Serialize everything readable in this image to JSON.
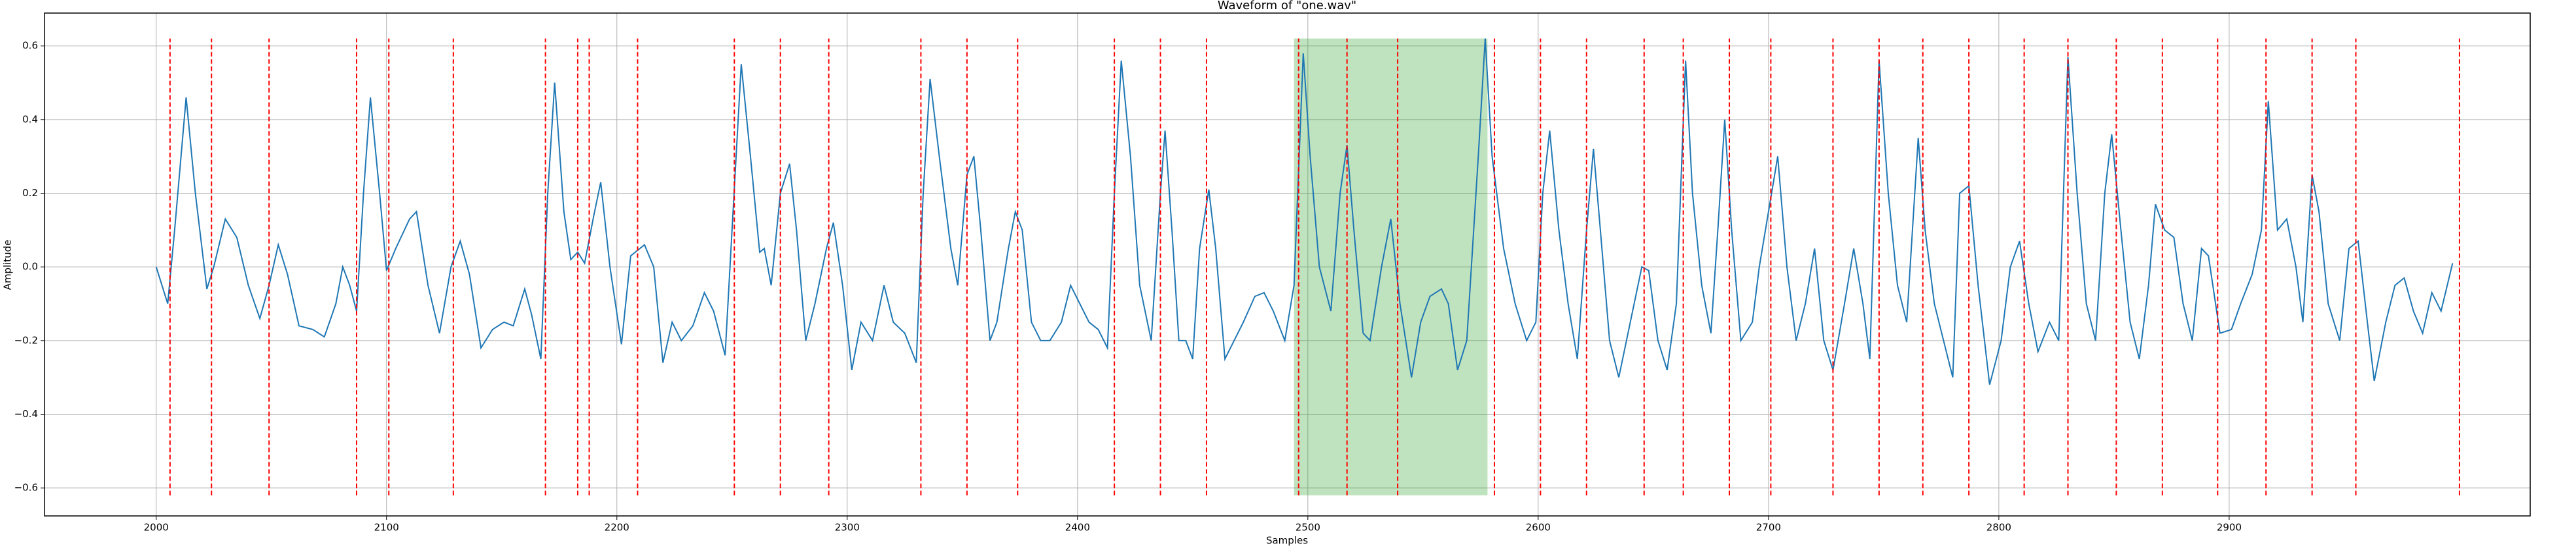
{
  "chart_data": {
    "type": "line",
    "title": "Waveform of \"one.wav\"",
    "x_label": "Samples",
    "y_label": "Amplitude",
    "x": [
      2000,
      2005,
      2008,
      2013,
      2017,
      2022,
      2025,
      2030,
      2035,
      2040,
      2045,
      2049,
      2053,
      2057,
      2062,
      2068,
      2073,
      2078,
      2081,
      2084,
      2087,
      2090,
      2093,
      2097,
      2100,
      2104,
      2110,
      2113,
      2118,
      2123,
      2128,
      2132,
      2136,
      2141,
      2146,
      2151,
      2155,
      2160,
      2163,
      2167,
      2170,
      2173,
      2177,
      2180,
      2183,
      2186,
      2190,
      2193,
      2197,
      2202,
      2206,
      2212,
      2216,
      2220,
      2224,
      2228,
      2233,
      2238,
      2242,
      2247,
      2250,
      2254,
      2258,
      2262,
      2264,
      2267,
      2271,
      2275,
      2278,
      2282,
      2286,
      2291,
      2294,
      2298,
      2302,
      2306,
      2311,
      2316,
      2320,
      2325,
      2330,
      2333,
      2336,
      2340,
      2345,
      2348,
      2352,
      2355,
      2358,
      2362,
      2365,
      2370,
      2373,
      2376,
      2380,
      2384,
      2388,
      2393,
      2397,
      2401,
      2405,
      2409,
      2413,
      2416,
      2419,
      2423,
      2427,
      2432,
      2436,
      2438,
      2441,
      2444,
      2447,
      2450,
      2453,
      2457,
      2460,
      2464,
      2468,
      2472,
      2477,
      2481,
      2485,
      2490,
      2494,
      2498,
      2501,
      2505,
      2510,
      2514,
      2517,
      2520,
      2524,
      2527,
      2532,
      2536,
      2540,
      2545,
      2549,
      2553,
      2558,
      2561,
      2565,
      2569,
      2574,
      2577,
      2580,
      2585,
      2590,
      2595,
      2599,
      2602,
      2605,
      2609,
      2613,
      2617,
      2621,
      2624,
      2627,
      2631,
      2635,
      2640,
      2645,
      2648,
      2652,
      2656,
      2660,
      2664,
      2667,
      2671,
      2675,
      2678,
      2681,
      2684,
      2688,
      2693,
      2696,
      2700,
      2704,
      2708,
      2712,
      2716,
      2720,
      2724,
      2728,
      2733,
      2737,
      2741,
      2744,
      2748,
      2752,
      2756,
      2760,
      2765,
      2768,
      2772,
      2776,
      2780,
      2783,
      2787,
      2791,
      2796,
      2801,
      2805,
      2809,
      2813,
      2817,
      2822,
      2826,
      2830,
      2834,
      2838,
      2842,
      2846,
      2849,
      2853,
      2857,
      2861,
      2865,
      2868,
      2872,
      2876,
      2880,
      2884,
      2888,
      2891,
      2896,
      2901,
      2905,
      2910,
      2914,
      2917,
      2921,
      2925,
      2929,
      2932,
      2936,
      2939,
      2943,
      2948,
      2952,
      2956,
      2960,
      2963,
      2968,
      2972,
      2976,
      2980,
      2984,
      2988,
      2992,
      2997
    ],
    "series": [
      {
        "color": "#1f77b4",
        "values": [
          0,
          -0.1,
          0.1,
          0.46,
          0.2,
          -0.06,
          0,
          0.13,
          0.08,
          -0.05,
          -0.14,
          -0.05,
          0.06,
          -0.02,
          -0.16,
          -0.17,
          -0.19,
          -0.1,
          0,
          -0.05,
          -0.12,
          0.2,
          0.46,
          0.2,
          -0.01,
          0.05,
          0.13,
          0.15,
          -0.05,
          -0.18,
          0,
          0.07,
          -0.02,
          -0.22,
          -0.17,
          -0.15,
          -0.16,
          -0.06,
          -0.13,
          -0.25,
          0.2,
          0.5,
          0.15,
          0.02,
          0.04,
          0.01,
          0.14,
          0.23,
          0,
          -0.21,
          0.03,
          0.06,
          0,
          -0.26,
          -0.15,
          -0.2,
          -0.16,
          -0.07,
          -0.12,
          -0.24,
          0.1,
          0.55,
          0.3,
          0.04,
          0.05,
          -0.05,
          0.2,
          0.28,
          0.1,
          -0.2,
          -0.1,
          0.05,
          0.12,
          -0.05,
          -0.28,
          -0.15,
          -0.2,
          -0.05,
          -0.15,
          -0.18,
          -0.26,
          0.2,
          0.51,
          0.3,
          0.05,
          -0.05,
          0.25,
          0.3,
          0.1,
          -0.2,
          -0.15,
          0.05,
          0.15,
          0.1,
          -0.15,
          -0.2,
          -0.2,
          -0.15,
          -0.05,
          -0.1,
          -0.15,
          -0.17,
          -0.22,
          0.2,
          0.56,
          0.3,
          -0.05,
          -0.2,
          0.2,
          0.37,
          0.1,
          -0.2,
          -0.2,
          -0.25,
          0.05,
          0.21,
          0.05,
          -0.25,
          -0.2,
          -0.15,
          -0.08,
          -0.07,
          -0.12,
          -0.2,
          -0.05,
          0.58,
          0.3,
          0,
          -0.12,
          0.2,
          0.33,
          0.1,
          -0.18,
          -0.2,
          0,
          0.13,
          -0.1,
          -0.3,
          -0.15,
          -0.08,
          -0.06,
          -0.1,
          -0.28,
          -0.2,
          0.3,
          0.62,
          0.3,
          0.05,
          -0.1,
          -0.2,
          -0.15,
          0.2,
          0.37,
          0.1,
          -0.1,
          -0.25,
          0.1,
          0.32,
          0.1,
          -0.2,
          -0.3,
          -0.15,
          0,
          -0.01,
          -0.2,
          -0.28,
          -0.1,
          0.56,
          0.2,
          -0.05,
          -0.18,
          0.1,
          0.4,
          0.1,
          -0.2,
          -0.15,
          0,
          0.15,
          0.3,
          0,
          -0.2,
          -0.1,
          0.05,
          -0.2,
          -0.28,
          -0.1,
          0.05,
          -0.1,
          -0.25,
          0.56,
          0.2,
          -0.05,
          -0.15,
          0.35,
          0.1,
          -0.1,
          -0.2,
          -0.3,
          0.2,
          0.22,
          -0.05,
          -0.32,
          -0.2,
          0,
          0.07,
          -0.1,
          -0.23,
          -0.15,
          -0.2,
          0.57,
          0.2,
          -0.1,
          -0.2,
          0.2,
          0.36,
          0.1,
          -0.15,
          -0.25,
          -0.05,
          0.17,
          0.1,
          0.08,
          -0.1,
          -0.2,
          0.05,
          0.03,
          -0.18,
          -0.17,
          -0.1,
          -0.02,
          0.1,
          0.45,
          0.1,
          0.13,
          0,
          -0.15,
          0.25,
          0.15,
          -0.1,
          -0.2,
          0.05,
          0.07,
          -0.15,
          -0.31,
          -0.15,
          -0.05,
          -0.03,
          -0.12,
          -0.18,
          -0.07,
          -0.12,
          0.01
        ]
      }
    ],
    "vlines": [
      2006,
      2024,
      2049,
      2087,
      2101,
      2129,
      2169,
      2183,
      2188,
      2209,
      2251,
      2271,
      2292,
      2332,
      2352,
      2374,
      2416,
      2436,
      2456,
      2496,
      2517,
      2539,
      2581,
      2601,
      2621,
      2646,
      2663,
      2683,
      2701,
      2728,
      2748,
      2767,
      2787,
      2811,
      2830,
      2851,
      2871,
      2895,
      2916,
      2936,
      2955,
      3000
    ],
    "vline_color": "#ff0000",
    "vline_range": [
      -0.62,
      0.62
    ],
    "span": [
      2494,
      2578
    ],
    "span_color": "#2ca02c",
    "span_range": [
      -0.62,
      0.62
    ],
    "xlim": [
      1951.5,
      3030.7
    ],
    "ylim": [
      -0.676,
      0.689
    ],
    "xticks": [
      2000,
      2100,
      2200,
      2300,
      2400,
      2500,
      2600,
      2700,
      2800,
      2900
    ],
    "yticks": [
      {
        "value": -0.6,
        "label": "−0.6"
      },
      {
        "value": -0.4,
        "label": "−0.4"
      },
      {
        "value": -0.2,
        "label": "−0.2"
      },
      {
        "value": 0,
        "label": "0.0"
      },
      0.2,
      0.4,
      0.6
    ],
    "grid": true
  }
}
